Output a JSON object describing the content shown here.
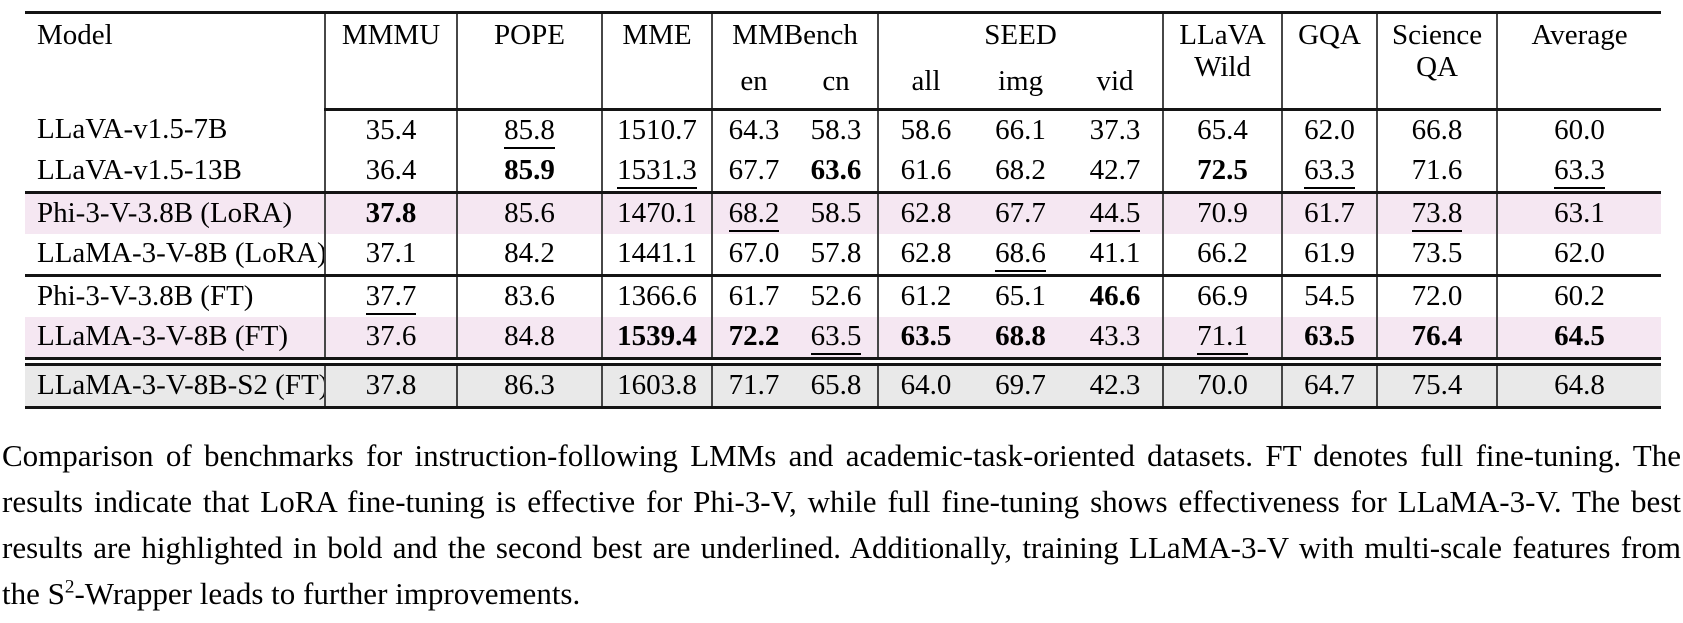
{
  "colors": {
    "pink": "#f5e7f2",
    "gray": "#e9e9e9",
    "rule": "#141414",
    "divider": "#474747"
  },
  "table": {
    "header": {
      "model": "Model",
      "mmmu": "MMMU",
      "pope": "POPE",
      "mme": "MME",
      "mmbench": "MMBench",
      "mmbench_en": "en",
      "mmbench_cn": "cn",
      "seed": "SEED",
      "seed_all": "all",
      "seed_img": "img",
      "seed_vid": "vid",
      "llava_line1": "LLaVA",
      "llava_line2": "Wild",
      "gqa": "GQA",
      "science_line1": "Science",
      "science_line2": "QA",
      "average": "Average"
    },
    "rows": [
      {
        "model": "LLaVA-v1.5-7B",
        "bg": null,
        "rule_before": null,
        "cells": [
          {
            "v": "35.4"
          },
          {
            "v": "85.8",
            "s": "u"
          },
          {
            "v": "1510.7"
          },
          {
            "v": "64.3"
          },
          {
            "v": "58.3"
          },
          {
            "v": "58.6"
          },
          {
            "v": "66.1"
          },
          {
            "v": "37.3"
          },
          {
            "v": "65.4"
          },
          {
            "v": "62.0"
          },
          {
            "v": "66.8"
          },
          {
            "v": "60.0"
          }
        ]
      },
      {
        "model": "LLaVA-v1.5-13B",
        "bg": null,
        "rule_before": null,
        "cells": [
          {
            "v": "36.4"
          },
          {
            "v": "85.9",
            "s": "b"
          },
          {
            "v": "1531.3",
            "s": "u"
          },
          {
            "v": "67.7"
          },
          {
            "v": "63.6",
            "s": "b"
          },
          {
            "v": "61.6"
          },
          {
            "v": "68.2"
          },
          {
            "v": "42.7"
          },
          {
            "v": "72.5",
            "s": "b"
          },
          {
            "v": "63.3",
            "s": "u"
          },
          {
            "v": "71.6"
          },
          {
            "v": "63.3",
            "s": "u"
          }
        ]
      },
      {
        "model": "Phi-3-V-3.8B (LoRA)",
        "bg": "pink",
        "rule_before": "single",
        "cells": [
          {
            "v": "37.8",
            "s": "b"
          },
          {
            "v": "85.6"
          },
          {
            "v": "1470.1"
          },
          {
            "v": "68.2",
            "s": "u"
          },
          {
            "v": "58.5"
          },
          {
            "v": "62.8"
          },
          {
            "v": "67.7"
          },
          {
            "v": "44.5",
            "s": "u"
          },
          {
            "v": "70.9"
          },
          {
            "v": "61.7"
          },
          {
            "v": "73.8",
            "s": "u"
          },
          {
            "v": "63.1"
          }
        ]
      },
      {
        "model": "LLaMA-3-V-8B (LoRA)",
        "bg": null,
        "rule_before": null,
        "cells": [
          {
            "v": "37.1"
          },
          {
            "v": "84.2"
          },
          {
            "v": "1441.1"
          },
          {
            "v": "67.0"
          },
          {
            "v": "57.8"
          },
          {
            "v": "62.8"
          },
          {
            "v": "68.6",
            "s": "u"
          },
          {
            "v": "41.1"
          },
          {
            "v": "66.2"
          },
          {
            "v": "61.9"
          },
          {
            "v": "73.5"
          },
          {
            "v": "62.0"
          }
        ]
      },
      {
        "model": "Phi-3-V-3.8B (FT)",
        "bg": null,
        "rule_before": "single",
        "cells": [
          {
            "v": "37.7",
            "s": "u"
          },
          {
            "v": "83.6"
          },
          {
            "v": "1366.6"
          },
          {
            "v": "61.7"
          },
          {
            "v": "52.6"
          },
          {
            "v": "61.2"
          },
          {
            "v": "65.1"
          },
          {
            "v": "46.6",
            "s": "b"
          },
          {
            "v": "66.9"
          },
          {
            "v": "54.5"
          },
          {
            "v": "72.0"
          },
          {
            "v": "60.2"
          }
        ]
      },
      {
        "model": "LLaMA-3-V-8B (FT)",
        "bg": "pink",
        "rule_before": null,
        "cells": [
          {
            "v": "37.6"
          },
          {
            "v": "84.8"
          },
          {
            "v": "1539.4",
            "s": "b"
          },
          {
            "v": "72.2",
            "s": "b"
          },
          {
            "v": "63.5",
            "s": "u"
          },
          {
            "v": "63.5",
            "s": "b"
          },
          {
            "v": "68.8",
            "s": "b"
          },
          {
            "v": "43.3"
          },
          {
            "v": "71.1",
            "s": "u"
          },
          {
            "v": "63.5",
            "s": "b"
          },
          {
            "v": "76.4",
            "s": "b"
          },
          {
            "v": "64.5",
            "s": "b"
          }
        ]
      },
      {
        "model": "LLaMA-3-V-8B-S2 (FT)",
        "bg": "gray",
        "rule_before": "double",
        "cells": [
          {
            "v": "37.8"
          },
          {
            "v": "86.3"
          },
          {
            "v": "1603.8"
          },
          {
            "v": "71.7"
          },
          {
            "v": "65.8"
          },
          {
            "v": "64.0"
          },
          {
            "v": "69.7"
          },
          {
            "v": "42.3"
          },
          {
            "v": "70.0"
          },
          {
            "v": "64.7"
          },
          {
            "v": "75.4"
          },
          {
            "v": "64.8"
          }
        ]
      }
    ]
  },
  "caption": {
    "part1": "Comparison of benchmarks for instruction-following LMMs and academic-task-oriented datasets. FT denotes full fine-tuning. The results indicate that LoRA fine-tuning is effective for Phi-3-V, while full fine-tuning shows effectiveness for LLaMA-3-V. The best results are highlighted in bold and the second best are underlined. Additionally, training LLaMA-3-V with multi-scale features from the S",
    "sup": "2",
    "part2": "-Wrapper leads to further improvements."
  }
}
